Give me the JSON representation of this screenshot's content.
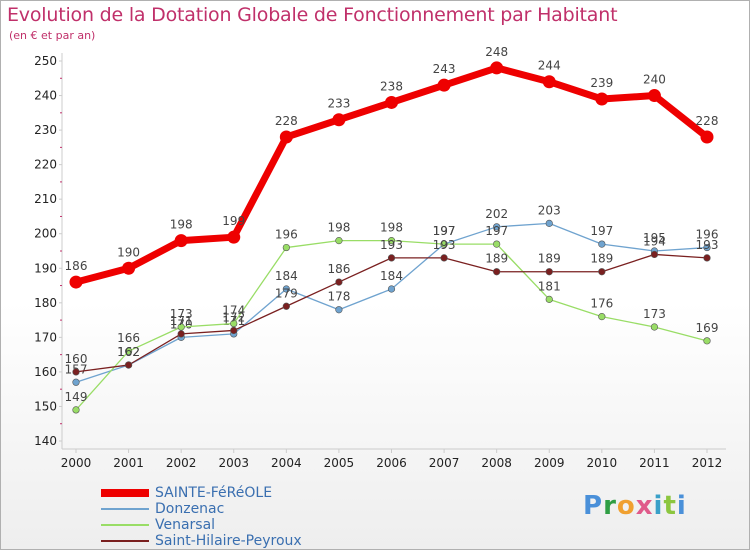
{
  "title": "Evolution de la Dotation Globale de Fonctionnement par Habitant",
  "subtitle": "(en € et par an)",
  "logo_text": "Proxiti",
  "colors": {
    "title": "#c0306a",
    "axis": "#cccccc",
    "tick_marks": "#c0306a",
    "label_text": "#444444"
  },
  "chart_data": {
    "type": "line",
    "title": "Evolution de la Dotation Globale de Fonctionnement par Habitant",
    "ylabel": "en € et par an",
    "x": [
      "2000",
      "2001",
      "2002",
      "2003",
      "2004",
      "2005",
      "2006",
      "2007",
      "2008",
      "2009",
      "2010",
      "2011",
      "2012"
    ],
    "ylim": [
      140,
      250
    ],
    "yticks": [
      140,
      150,
      160,
      170,
      180,
      190,
      200,
      210,
      220,
      230,
      240,
      250
    ],
    "grid": false,
    "legend_position": "bottom-left",
    "series": [
      {
        "name": "SAINTE-FéRéOLE",
        "color": "#ee0000",
        "width": "thick",
        "values": [
          186,
          190,
          198,
          199,
          228,
          233,
          238,
          243,
          248,
          244,
          239,
          240,
          228
        ]
      },
      {
        "name": "Donzenac",
        "color": "#6fa3cf",
        "width": "thin",
        "values": [
          157,
          162,
          170,
          171,
          184,
          178,
          184,
          197,
          202,
          203,
          197,
          195,
          196
        ]
      },
      {
        "name": "Venarsal",
        "color": "#99dd66",
        "width": "thin",
        "values": [
          149,
          166,
          173,
          174,
          196,
          198,
          198,
          197,
          197,
          181,
          176,
          173,
          169
        ]
      },
      {
        "name": "Saint-Hilaire-Peyroux",
        "color": "#7a2020",
        "width": "thin",
        "values": [
          160,
          162,
          171,
          172,
          179,
          186,
          193,
          193,
          189,
          189,
          189,
          194,
          193
        ]
      }
    ]
  }
}
